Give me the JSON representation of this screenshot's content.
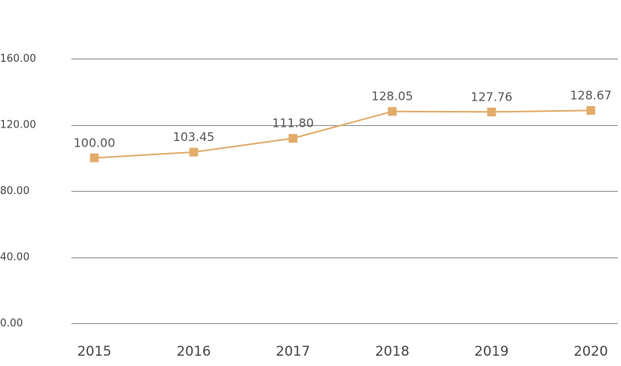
{
  "chart_data": {
    "type": "line",
    "title": "",
    "xlabel": "",
    "ylabel": "",
    "categories": [
      "2015",
      "2016",
      "2017",
      "2018",
      "2019",
      "2020"
    ],
    "series": [
      {
        "values": [
          100.0,
          103.45,
          111.8,
          128.05,
          127.76,
          128.67
        ],
        "labels": [
          "100.00",
          "103.45",
          "111.80",
          "128.05",
          "127.76",
          "128.67"
        ],
        "color": "#e2ac6a",
        "marker": "square"
      }
    ],
    "ylim": [
      0,
      160
    ],
    "yticks": [
      0,
      40,
      80,
      120,
      160
    ],
    "ytick_labels": [
      "0.00",
      "40.00",
      "80.00",
      "120.00",
      "160.00"
    ],
    "grid": true,
    "legend": "none"
  }
}
